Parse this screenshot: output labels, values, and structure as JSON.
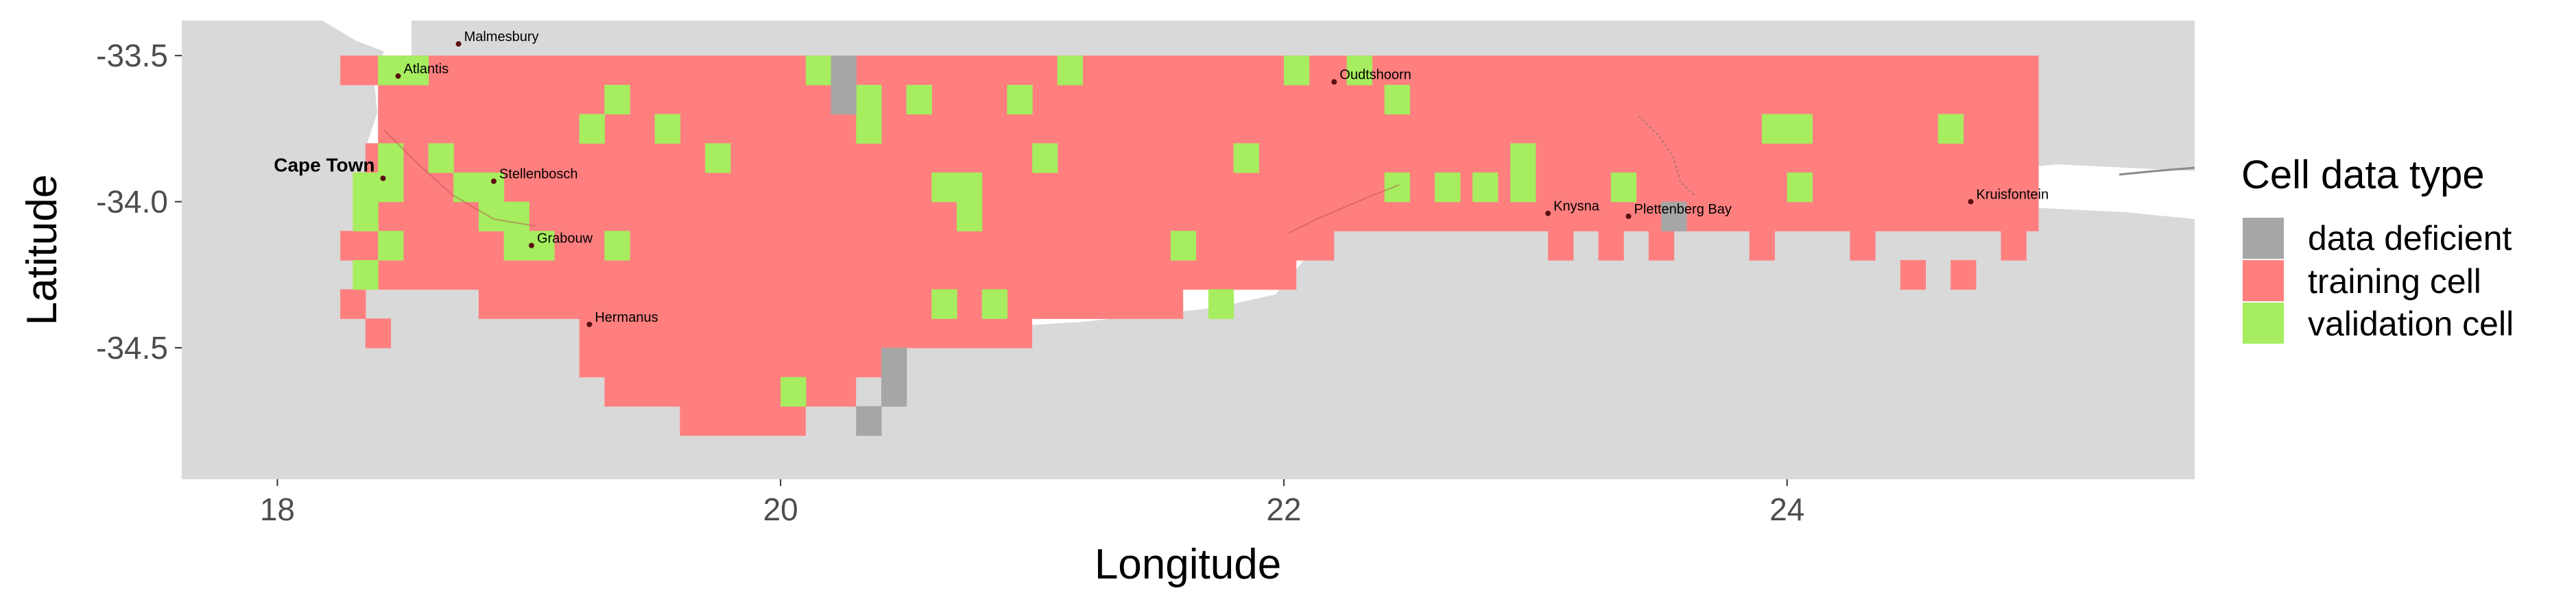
{
  "axes": {
    "x_title": "Longitude",
    "y_title": "Latitude",
    "x_ticks": [
      18,
      20,
      22,
      24
    ],
    "x_tick_labels": [
      "18",
      "20",
      "22",
      "24"
    ],
    "y_ticks": [
      -33.5,
      -34.0,
      -34.5
    ],
    "y_tick_labels": [
      "-33.5",
      "-34.0",
      "-34.5"
    ],
    "x_range": [
      17.62,
      25.62
    ],
    "y_range": [
      -34.95,
      -33.38
    ]
  },
  "legend": {
    "title": "Cell data type",
    "items": [
      {
        "key": "data_deficient",
        "label": "data deficient",
        "color": "#a6a6a6"
      },
      {
        "key": "training",
        "label": "training cell",
        "color": "#ff7f7f"
      },
      {
        "key": "validation",
        "label": "validation cell",
        "color": "#a6ed5f"
      }
    ]
  },
  "colors": {
    "land": "#d9d9d9",
    "training": "#ff7f7f",
    "validation": "#a6ed5f",
    "data_deficient": "#a6a6a6",
    "ocean": "#ffffff"
  },
  "cities": [
    {
      "name": "Malmesbury",
      "lon": 18.72,
      "lat": -33.46,
      "big": false
    },
    {
      "name": "Atlantis",
      "lon": 18.48,
      "lat": -33.57,
      "big": false
    },
    {
      "name": "Cape Town",
      "lon": 18.42,
      "lat": -33.92,
      "big": true
    },
    {
      "name": "Stellenbosch",
      "lon": 18.86,
      "lat": -33.93,
      "big": false
    },
    {
      "name": "Grabouw",
      "lon": 19.01,
      "lat": -34.15,
      "big": false
    },
    {
      "name": "Hermanus",
      "lon": 19.24,
      "lat": -34.42,
      "big": false
    },
    {
      "name": "Oudtshoorn",
      "lon": 22.2,
      "lat": -33.59,
      "big": false
    },
    {
      "name": "Knysna",
      "lon": 23.05,
      "lat": -34.04,
      "big": false
    },
    {
      "name": "Plettenberg Bay",
      "lon": 23.37,
      "lat": -34.05,
      "big": false
    },
    {
      "name": "Kruisfontein",
      "lon": 24.73,
      "lat": -34.0,
      "big": false
    }
  ],
  "grid": {
    "cell_size_deg": 0.1,
    "training_rows": [
      {
        "lat": -33.55,
        "lon_min": 18.25,
        "lon_max": 25.0
      },
      {
        "lat": -33.65,
        "lon_min": 18.4,
        "lon_max": 25.0
      },
      {
        "lat": -33.75,
        "lon_min": 18.4,
        "lon_max": 25.0
      },
      {
        "lat": -33.85,
        "lon_min": 18.35,
        "lon_max": 25.0
      },
      {
        "lat": -33.95,
        "lon_min": 18.3,
        "lon_max": 25.0
      },
      {
        "lat": -34.05,
        "lon_min": 18.3,
        "lon_max": 25.0
      },
      {
        "lat": -34.15,
        "lon_min": 18.25,
        "lon_max": 22.2
      },
      {
        "lat": -34.25,
        "lon_min": 18.3,
        "lon_max": 22.05
      },
      {
        "lat": -34.35,
        "lon_min": 18.8,
        "lon_max": 21.6
      },
      {
        "lat": -34.45,
        "lon_min": 19.2,
        "lon_max": 21.0
      },
      {
        "lat": -34.55,
        "lon_min": 19.2,
        "lon_max": 20.5
      },
      {
        "lat": -34.65,
        "lon_min": 19.3,
        "lon_max": 20.3
      },
      {
        "lat": -34.75,
        "lon_min": 19.6,
        "lon_max": 20.1
      }
    ],
    "training_extra": [
      {
        "lon": 23.5,
        "lat": -34.15
      },
      {
        "lon": 23.1,
        "lat": -34.15
      },
      {
        "lon": 23.3,
        "lat": -34.15
      },
      {
        "lon": 23.9,
        "lat": -34.15
      },
      {
        "lon": 24.3,
        "lat": -34.15
      },
      {
        "lon": 24.5,
        "lat": -34.25
      },
      {
        "lon": 24.7,
        "lat": -34.25
      },
      {
        "lon": 24.9,
        "lat": -34.15
      },
      {
        "lon": 18.3,
        "lat": -34.35
      },
      {
        "lon": 18.4,
        "lat": -34.45
      }
    ],
    "validation_cells": [
      {
        "lon": 18.55,
        "lat": -33.55
      },
      {
        "lon": 18.45,
        "lat": -33.55
      },
      {
        "lon": 18.45,
        "lat": -33.85
      },
      {
        "lon": 18.65,
        "lat": -33.85
      },
      {
        "lon": 18.35,
        "lat": -33.95
      },
      {
        "lon": 18.45,
        "lat": -33.95
      },
      {
        "lon": 18.35,
        "lat": -34.05
      },
      {
        "lon": 18.45,
        "lat": -34.15
      },
      {
        "lon": 18.35,
        "lat": -34.25
      },
      {
        "lon": 18.75,
        "lat": -33.95
      },
      {
        "lon": 18.85,
        "lat": -34.05
      },
      {
        "lon": 18.95,
        "lat": -34.05
      },
      {
        "lon": 18.95,
        "lat": -34.15
      },
      {
        "lon": 19.05,
        "lat": -34.15
      },
      {
        "lon": 18.85,
        "lat": -33.95
      },
      {
        "lon": 19.35,
        "lat": -33.65
      },
      {
        "lon": 19.25,
        "lat": -33.75
      },
      {
        "lon": 19.55,
        "lat": -33.75
      },
      {
        "lon": 19.75,
        "lat": -33.85
      },
      {
        "lon": 19.35,
        "lat": -34.15
      },
      {
        "lon": 20.15,
        "lat": -33.55
      },
      {
        "lon": 20.35,
        "lat": -33.65
      },
      {
        "lon": 20.35,
        "lat": -33.75
      },
      {
        "lon": 20.55,
        "lat": -33.65
      },
      {
        "lon": 20.95,
        "lat": -33.65
      },
      {
        "lon": 21.15,
        "lat": -33.55
      },
      {
        "lon": 20.65,
        "lat": -33.95
      },
      {
        "lon": 20.75,
        "lat": -33.95
      },
      {
        "lon": 20.75,
        "lat": -34.05
      },
      {
        "lon": 20.65,
        "lat": -34.35
      },
      {
        "lon": 20.85,
        "lat": -34.35
      },
      {
        "lon": 20.05,
        "lat": -34.65
      },
      {
        "lon": 21.6,
        "lat": -34.15
      },
      {
        "lon": 21.85,
        "lat": -33.85
      },
      {
        "lon": 21.75,
        "lat": -34.35
      },
      {
        "lon": 21.05,
        "lat": -33.85
      },
      {
        "lon": 22.05,
        "lat": -33.55
      },
      {
        "lon": 22.3,
        "lat": -33.55
      },
      {
        "lon": 22.45,
        "lat": -33.65
      },
      {
        "lon": 22.45,
        "lat": -33.95
      },
      {
        "lon": 22.65,
        "lat": -33.95
      },
      {
        "lon": 22.8,
        "lat": -33.95
      },
      {
        "lon": 22.95,
        "lat": -33.85
      },
      {
        "lon": 22.95,
        "lat": -33.95
      },
      {
        "lon": 23.35,
        "lat": -33.95
      },
      {
        "lon": 23.95,
        "lat": -33.75
      },
      {
        "lon": 24.05,
        "lat": -33.75
      },
      {
        "lon": 24.05,
        "lat": -33.95
      },
      {
        "lon": 24.65,
        "lat": -33.75
      }
    ],
    "deficient_cells": [
      {
        "lon": 20.25,
        "lat": -33.55
      },
      {
        "lon": 20.25,
        "lat": -33.65
      },
      {
        "lon": 20.45,
        "lat": -34.55
      },
      {
        "lon": 20.45,
        "lat": -34.65
      },
      {
        "lon": 20.35,
        "lat": -34.75
      },
      {
        "lon": 23.55,
        "lat": -34.05
      }
    ]
  }
}
